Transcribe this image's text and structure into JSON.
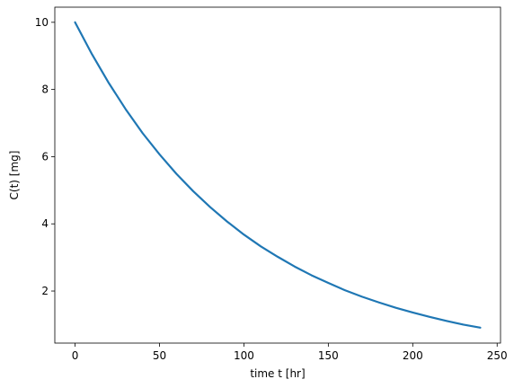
{
  "chart_data": {
    "type": "line",
    "title": "",
    "xlabel": "time t [hr]",
    "ylabel": "C(t) [mg]",
    "xlim": [
      -12,
      252
    ],
    "ylim": [
      0.45,
      10.45
    ],
    "xticks": [
      0,
      50,
      100,
      150,
      200,
      250
    ],
    "yticks": [
      2,
      4,
      6,
      8,
      10
    ],
    "grid": false,
    "legend": "none",
    "series": [
      {
        "color": "#1f77b4",
        "x": [
          0,
          10,
          20,
          30,
          40,
          50,
          60,
          70,
          80,
          90,
          100,
          110,
          120,
          130,
          140,
          150,
          160,
          170,
          180,
          190,
          200,
          210,
          220,
          230,
          240
        ],
        "y": [
          10.0,
          9.05,
          8.19,
          7.41,
          6.7,
          6.07,
          5.49,
          4.97,
          4.5,
          4.07,
          3.68,
          3.33,
          3.02,
          2.73,
          2.47,
          2.24,
          2.02,
          1.83,
          1.66,
          1.5,
          1.36,
          1.23,
          1.11,
          1.0,
          0.91
        ]
      }
    ]
  }
}
